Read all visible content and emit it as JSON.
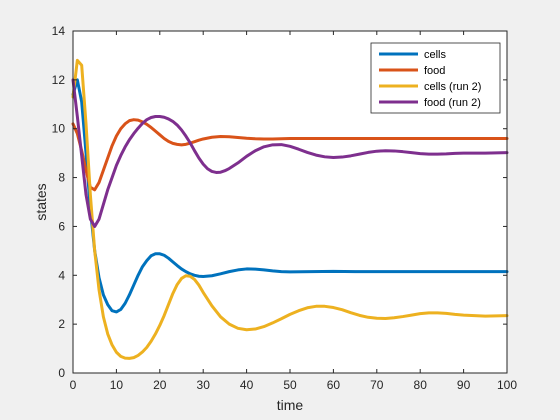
{
  "chart_data": {
    "type": "line",
    "title": "",
    "xlabel": "time",
    "ylabel": "states",
    "xlim": [
      0,
      100
    ],
    "ylim": [
      0,
      14
    ],
    "x_ticks": [
      0,
      10,
      20,
      30,
      40,
      50,
      60,
      70,
      80,
      90,
      100
    ],
    "y_ticks": [
      0,
      2,
      4,
      6,
      8,
      10,
      12,
      14
    ],
    "grid": false,
    "legend_position": "top-right",
    "series": [
      {
        "name": "cells",
        "color": "#0072BD",
        "x": [
          0,
          1,
          2,
          3,
          4,
          5,
          6,
          7,
          8,
          9,
          10,
          11,
          12,
          13,
          14,
          15,
          16,
          17,
          18,
          19,
          20,
          21,
          22,
          23,
          24,
          25,
          26,
          27,
          28,
          29,
          30,
          32,
          34,
          36,
          38,
          40,
          42,
          44,
          46,
          48,
          50,
          55,
          60,
          65,
          70,
          75,
          80,
          85,
          90,
          95,
          100
        ],
        "y": [
          11.4,
          12.0,
          11.1,
          9.0,
          6.7,
          5.0,
          3.9,
          3.2,
          2.8,
          2.55,
          2.5,
          2.6,
          2.85,
          3.2,
          3.6,
          4.0,
          4.35,
          4.6,
          4.8,
          4.88,
          4.88,
          4.82,
          4.7,
          4.55,
          4.4,
          4.26,
          4.15,
          4.06,
          4.0,
          3.96,
          3.95,
          3.98,
          4.06,
          4.15,
          4.22,
          4.26,
          4.25,
          4.22,
          4.18,
          4.15,
          4.14,
          4.15,
          4.16,
          4.15,
          4.15,
          4.15,
          4.15,
          4.15,
          4.15,
          4.15,
          4.15
        ]
      },
      {
        "name": "food",
        "color": "#D95319",
        "x": [
          0,
          1,
          2,
          3,
          4,
          5,
          6,
          7,
          8,
          9,
          10,
          11,
          12,
          13,
          14,
          15,
          16,
          17,
          18,
          19,
          20,
          21,
          22,
          23,
          24,
          25,
          26,
          27,
          28,
          29,
          30,
          32,
          34,
          36,
          38,
          40,
          42,
          44,
          46,
          48,
          50,
          55,
          60,
          65,
          70,
          75,
          80,
          85,
          90,
          95,
          100
        ],
        "y": [
          10.2,
          9.8,
          9.1,
          8.3,
          7.6,
          7.5,
          7.8,
          8.3,
          8.8,
          9.3,
          9.7,
          10.0,
          10.2,
          10.33,
          10.37,
          10.35,
          10.28,
          10.18,
          10.05,
          9.9,
          9.75,
          9.6,
          9.48,
          9.4,
          9.36,
          9.34,
          9.36,
          9.41,
          9.47,
          9.53,
          9.58,
          9.65,
          9.68,
          9.67,
          9.64,
          9.61,
          9.59,
          9.58,
          9.58,
          9.59,
          9.6,
          9.6,
          9.6,
          9.6,
          9.6,
          9.6,
          9.6,
          9.6,
          9.6,
          9.6,
          9.6
        ]
      },
      {
        "name": "cells (run 2)",
        "color": "#EDB120",
        "x": [
          0,
          1,
          2,
          3,
          4,
          5,
          6,
          7,
          8,
          9,
          10,
          11,
          12,
          13,
          14,
          15,
          16,
          17,
          18,
          19,
          20,
          21,
          22,
          23,
          24,
          25,
          26,
          27,
          28,
          29,
          30,
          32,
          34,
          36,
          38,
          40,
          42,
          44,
          46,
          48,
          50,
          52,
          54,
          56,
          58,
          60,
          62,
          64,
          66,
          68,
          70,
          72,
          74,
          76,
          78,
          80,
          82,
          84,
          86,
          88,
          90,
          95,
          100
        ],
        "y": [
          11.3,
          12.8,
          12.6,
          10.2,
          7.3,
          5.0,
          3.4,
          2.3,
          1.6,
          1.15,
          0.85,
          0.68,
          0.61,
          0.6,
          0.63,
          0.72,
          0.86,
          1.05,
          1.3,
          1.6,
          1.95,
          2.35,
          2.8,
          3.25,
          3.62,
          3.87,
          3.98,
          3.96,
          3.83,
          3.6,
          3.3,
          2.75,
          2.3,
          2.0,
          1.83,
          1.77,
          1.8,
          1.9,
          2.05,
          2.22,
          2.4,
          2.55,
          2.67,
          2.73,
          2.73,
          2.68,
          2.59,
          2.47,
          2.36,
          2.28,
          2.24,
          2.23,
          2.26,
          2.31,
          2.37,
          2.43,
          2.46,
          2.46,
          2.44,
          2.4,
          2.37,
          2.33,
          2.35
        ]
      },
      {
        "name": "food (run 2)",
        "color": "#7E2F8E",
        "x": [
          0,
          1,
          2,
          3,
          4,
          5,
          6,
          7,
          8,
          9,
          10,
          11,
          12,
          13,
          14,
          15,
          16,
          17,
          18,
          19,
          20,
          21,
          22,
          23,
          24,
          25,
          26,
          27,
          28,
          29,
          30,
          31,
          32,
          33,
          34,
          35,
          36,
          38,
          40,
          42,
          44,
          46,
          48,
          50,
          52,
          54,
          56,
          58,
          60,
          62,
          64,
          66,
          68,
          70,
          72,
          74,
          76,
          78,
          80,
          82,
          84,
          86,
          88,
          90,
          95,
          100
        ],
        "y": [
          12.0,
          10.5,
          8.9,
          7.3,
          6.3,
          6.0,
          6.3,
          6.9,
          7.5,
          8.0,
          8.5,
          8.9,
          9.25,
          9.55,
          9.8,
          10.02,
          10.22,
          10.37,
          10.46,
          10.5,
          10.5,
          10.47,
          10.4,
          10.3,
          10.15,
          9.95,
          9.7,
          9.42,
          9.1,
          8.8,
          8.55,
          8.36,
          8.25,
          8.21,
          8.22,
          8.28,
          8.37,
          8.6,
          8.87,
          9.1,
          9.26,
          9.34,
          9.35,
          9.28,
          9.16,
          9.03,
          8.92,
          8.85,
          8.82,
          8.84,
          8.89,
          8.96,
          9.03,
          9.08,
          9.1,
          9.09,
          9.06,
          9.02,
          8.98,
          8.96,
          8.96,
          8.97,
          8.99,
          9.0,
          9.0,
          9.02
        ]
      }
    ]
  }
}
